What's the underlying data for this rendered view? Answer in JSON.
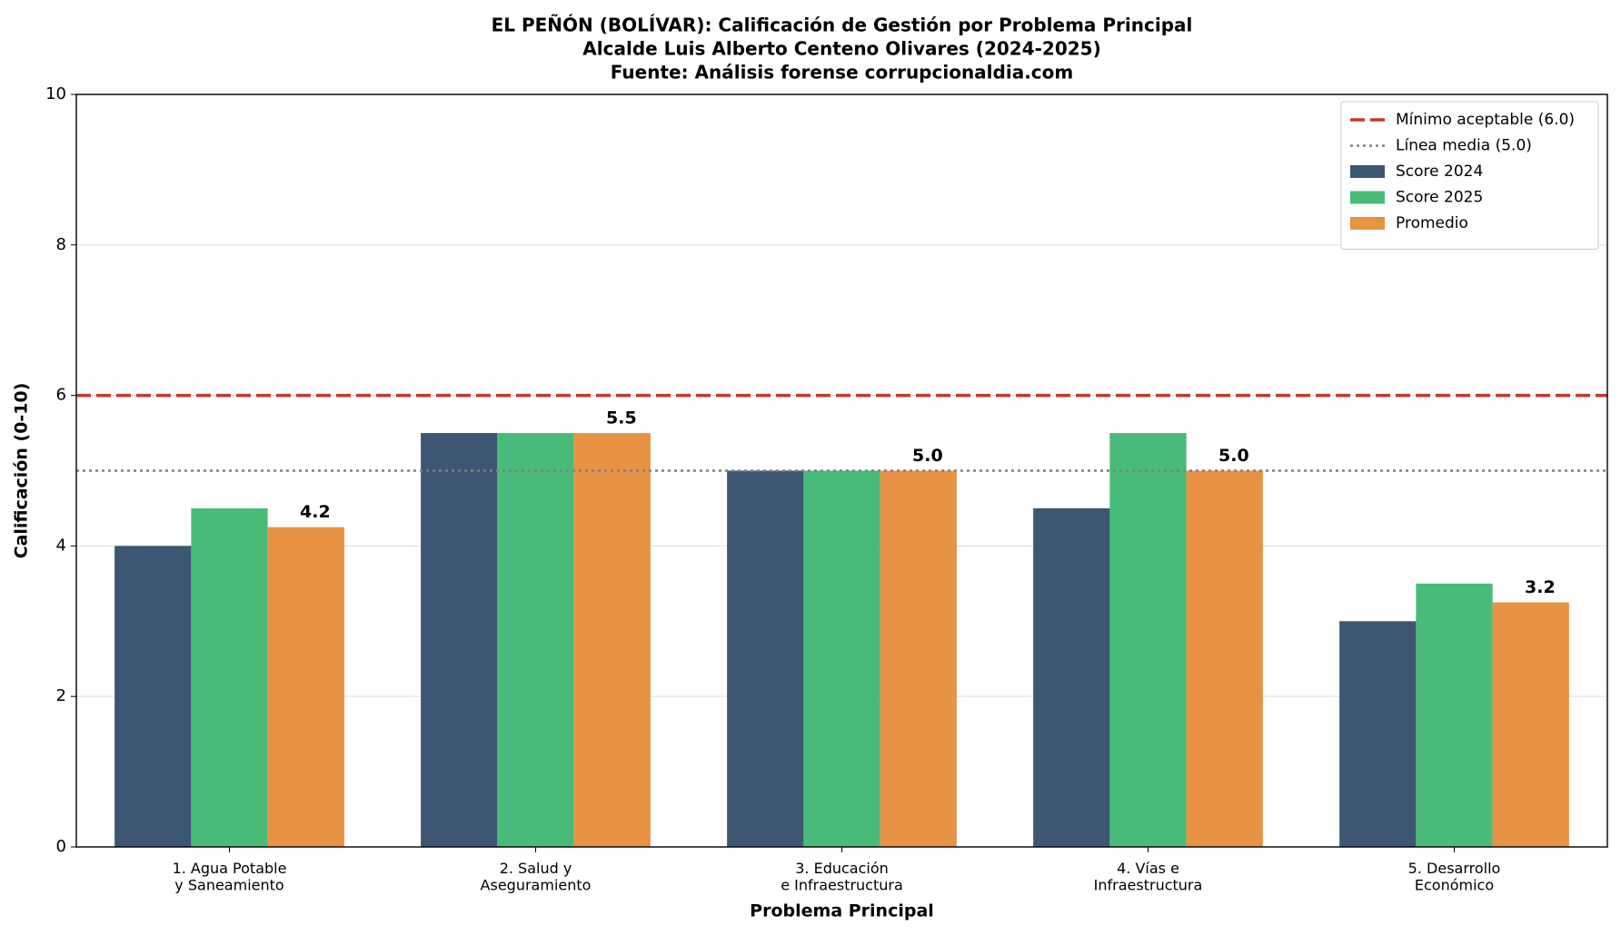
{
  "chart_data": {
    "type": "bar",
    "title": [
      "EL PEÑÓN (BOLÍVAR): Calificación de Gestión por Problema Principal",
      "Alcalde Luis Alberto Centeno Olivares (2024-2025)",
      "Fuente: Análisis forense corrupcionaldia.com"
    ],
    "x_label": "Problema Principal",
    "y_label": "Calificación (0-10)",
    "categories": [
      "1. Agua Potable\ny Saneamiento",
      "2. Salud y\nAseguramiento",
      "3. Educación\ne Infraestructura",
      "4. Vías e\nInfraestructura",
      "5. Desarrollo\nEconómico"
    ],
    "series": [
      {
        "name": "Score 2024",
        "color": "#3d5673",
        "values": [
          4,
          5.5,
          5,
          4.5,
          3
        ]
      },
      {
        "name": "Score 2025",
        "color": "#48bb78",
        "values": [
          4.5,
          5.5,
          5,
          5.5,
          3.5
        ]
      },
      {
        "name": "Promedio",
        "color": "#e89244",
        "values": [
          4.25,
          5.5,
          5,
          5,
          3.25
        ],
        "value_labels": [
          "4.2",
          "5.5",
          "5.0",
          "5.0",
          "3.2"
        ],
        "label_color": "#e67e22"
      }
    ],
    "reference_lines": [
      {
        "name": "Mínimo aceptable (6.0)",
        "value": 6,
        "color": "#c0392b",
        "style": "dashed"
      },
      {
        "name": "Línea media (5.0)",
        "value": 5,
        "color": "#808080",
        "style": "dotted"
      }
    ],
    "ylim": [
      0,
      10
    ],
    "yticks": [
      0,
      2,
      4,
      6,
      8,
      10
    ],
    "grid": true,
    "legend": "upper right"
  }
}
